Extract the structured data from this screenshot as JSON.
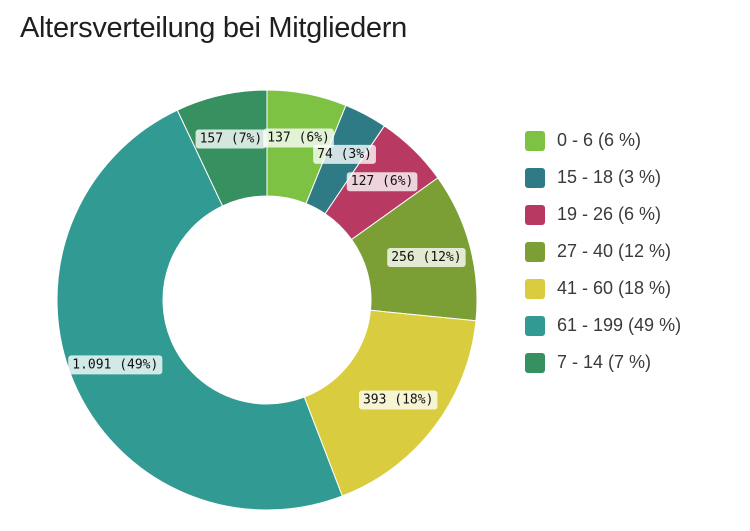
{
  "title": "Altersverteilung bei Mitgliedern",
  "chart_data": {
    "type": "pie",
    "variant": "donut",
    "title": "Altersverteilung bei Mitgliedern",
    "legend_position": "right",
    "slices": [
      {
        "category": "0 - 6",
        "value": 137,
        "percent_label": "6%",
        "legend_label": "0 - 6 (6 %)",
        "data_label": "137 (6%)",
        "color": "#7dc242"
      },
      {
        "category": "15 - 18",
        "value": 74,
        "percent_label": "3%",
        "legend_label": "15 - 18 (3 %)",
        "data_label": "74 (3%)",
        "color": "#2e7b86"
      },
      {
        "category": "19 - 26",
        "value": 127,
        "percent_label": "6%",
        "legend_label": "19 - 26 (6 %)",
        "data_label": "127 (6%)",
        "color": "#b83a62"
      },
      {
        "category": "27 - 40",
        "value": 256,
        "percent_label": "12%",
        "legend_label": "27 - 40 (12 %)",
        "data_label": "256 (12%)",
        "color": "#7c9f35"
      },
      {
        "category": "41 - 60",
        "value": 393,
        "percent_label": "18%",
        "legend_label": "41 - 60 (18 %)",
        "data_label": "393 (18%)",
        "color": "#d9cc3e"
      },
      {
        "category": "61 - 199",
        "value": 1091,
        "percent_label": "49%",
        "legend_label": "61 - 199 (49 %)",
        "data_label": "1.091 (49%)",
        "color": "#319a92"
      },
      {
        "category": "7 - 14",
        "value": 157,
        "percent_label": "7%",
        "legend_label": "7 - 14 (7 %)",
        "data_label": "157 (7%)",
        "color": "#379060"
      }
    ]
  }
}
